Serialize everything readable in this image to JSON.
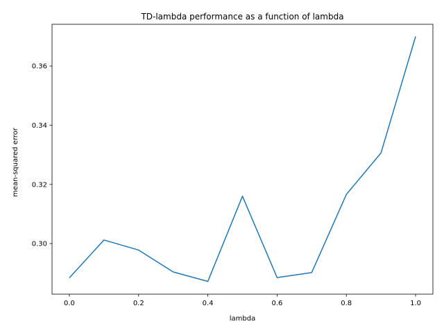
{
  "chart_data": {
    "type": "line",
    "title": "TD-lambda performance as a function of lambda",
    "xlabel": "lambda",
    "ylabel": "mean-squared error",
    "xlim": [
      -0.05,
      1.05
    ],
    "ylim": [
      0.2829,
      0.3741
    ],
    "xticks": [
      0.0,
      0.2,
      0.4,
      0.6,
      0.8,
      1.0
    ],
    "xtick_labels": [
      "0.0",
      "0.2",
      "0.4",
      "0.6",
      "0.8",
      "1.0"
    ],
    "yticks": [
      0.3,
      0.32,
      0.34,
      0.36
    ],
    "ytick_labels": [
      "0.30",
      "0.32",
      "0.34",
      "0.36"
    ],
    "grid": false,
    "series": [
      {
        "color": "#1f77b4",
        "x": [
          0.0,
          0.1,
          0.2,
          0.3,
          0.4,
          0.5,
          0.6,
          0.7,
          0.8,
          0.9,
          1.0
        ],
        "y": [
          0.2884,
          0.3012,
          0.2978,
          0.2904,
          0.2872,
          0.316,
          0.2885,
          0.2902,
          0.3166,
          0.3306,
          0.37
        ]
      }
    ]
  }
}
